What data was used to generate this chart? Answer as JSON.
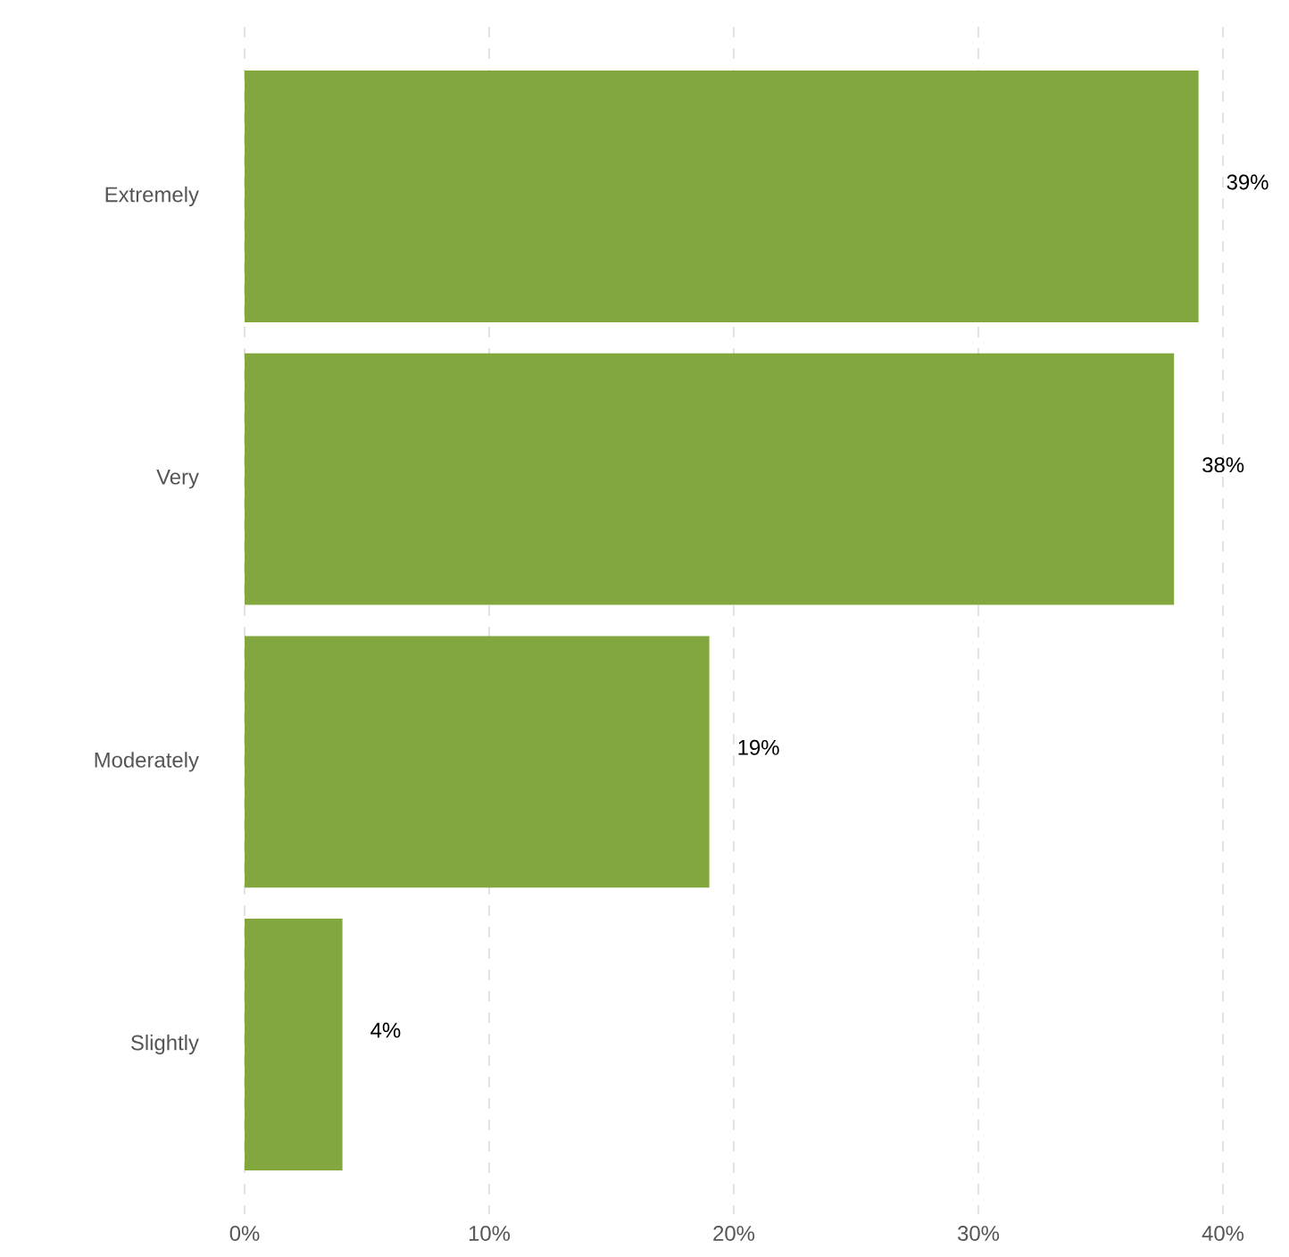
{
  "chart_data": {
    "type": "bar",
    "orientation": "horizontal",
    "categories": [
      "Extremely",
      "Very",
      "Moderately",
      "Slightly"
    ],
    "values": [
      39,
      38,
      19,
      4
    ],
    "value_labels": [
      "39%",
      "38%",
      "19%",
      "4%"
    ],
    "color": "#82a73e",
    "xlim": [
      0,
      40
    ],
    "xticks": [
      {
        "value": 0,
        "label": "0%"
      },
      {
        "value": 10,
        "label": "10%"
      },
      {
        "value": 20,
        "label": "20%"
      },
      {
        "value": 30,
        "label": "30%"
      },
      {
        "value": 40,
        "label": "40%"
      }
    ],
    "grid": "x"
  }
}
